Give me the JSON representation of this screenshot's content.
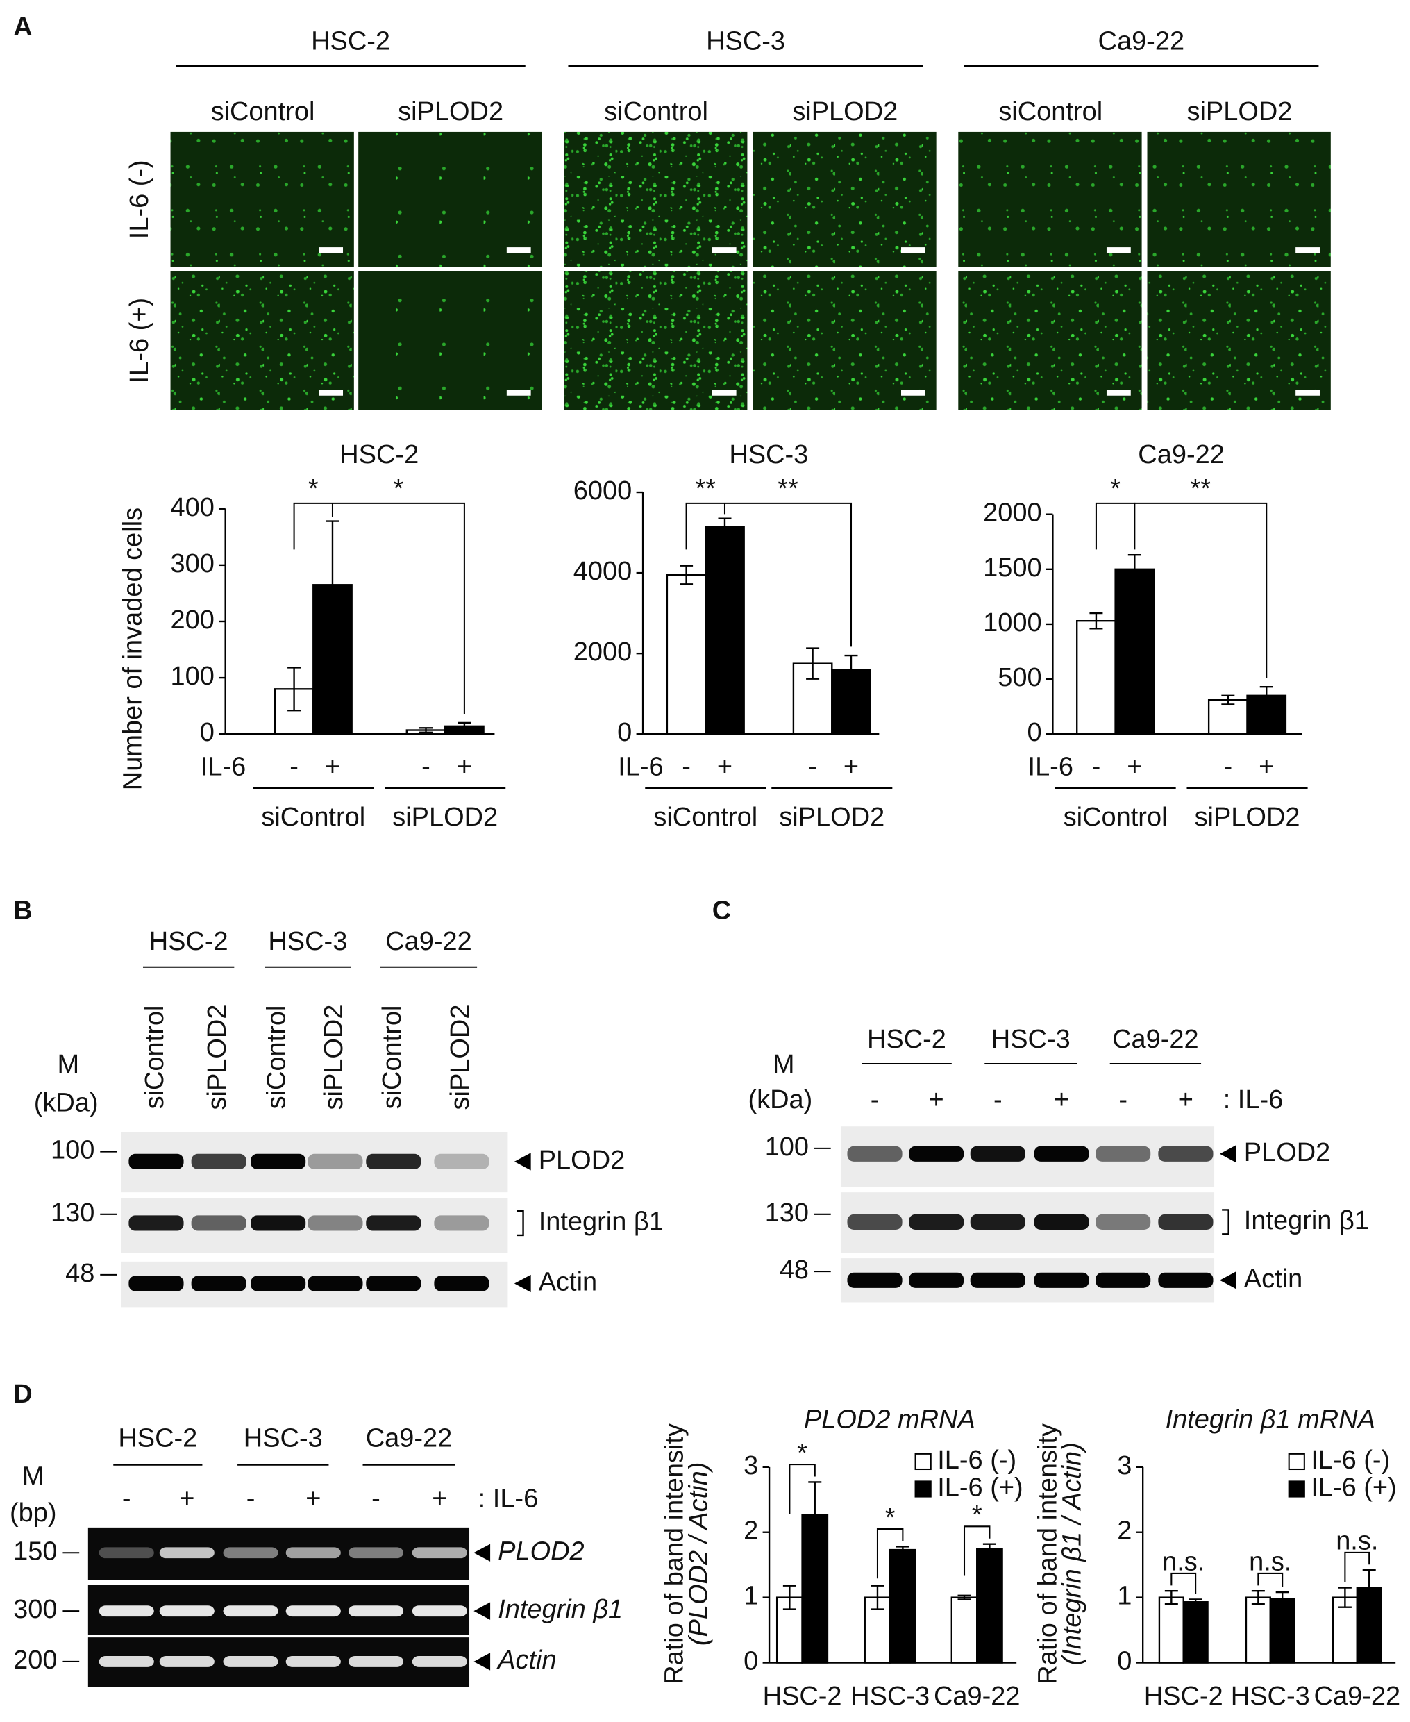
{
  "panel_a": {
    "label": "A",
    "cell_lines": [
      "HSC-2",
      "HSC-3",
      "Ca9-22"
    ],
    "conditions": [
      "siControl",
      "siPLOD2"
    ],
    "rows": [
      "IL-6 (-)",
      "IL-6 (+)"
    ]
  },
  "chart_data": [
    {
      "type": "bar",
      "title": "HSC-2",
      "y_label": "Number of invaded cells",
      "x_label": "IL-6",
      "categories": [
        "siControl",
        "siPLOD2"
      ],
      "series": [
        {
          "name": "-",
          "color": "#ffffff",
          "values": [
            80,
            7
          ],
          "errors": [
            38,
            4
          ]
        },
        {
          "name": "+",
          "color": "#000000",
          "values": [
            265,
            14
          ],
          "errors": [
            113,
            6
          ]
        }
      ],
      "ylim": [
        0,
        400
      ],
      "yticks": [
        0,
        100,
        200,
        300,
        400
      ],
      "annotations": [
        "*",
        "*"
      ]
    },
    {
      "type": "bar",
      "title": "HSC-3",
      "x_label": "IL-6",
      "categories": [
        "siControl",
        "siPLOD2"
      ],
      "series": [
        {
          "name": "-",
          "color": "#ffffff",
          "values": [
            3950,
            1750
          ],
          "errors": [
            230,
            380
          ]
        },
        {
          "name": "+",
          "color": "#000000",
          "values": [
            5150,
            1600
          ],
          "errors": [
            200,
            350
          ]
        }
      ],
      "ylim": [
        0,
        6000
      ],
      "yticks": [
        0,
        2000,
        4000,
        6000
      ],
      "annotations": [
        "**",
        "**"
      ]
    },
    {
      "type": "bar",
      "title": "Ca9-22",
      "x_label": "IL-6",
      "categories": [
        "siControl",
        "siPLOD2"
      ],
      "series": [
        {
          "name": "-",
          "color": "#ffffff",
          "values": [
            1030,
            310
          ],
          "errors": [
            70,
            40
          ]
        },
        {
          "name": "+",
          "color": "#000000",
          "values": [
            1500,
            350
          ],
          "errors": [
            130,
            80
          ]
        }
      ],
      "ylim": [
        0,
        2000
      ],
      "yticks": [
        0,
        500,
        1000,
        1500,
        2000
      ],
      "annotations": [
        "*",
        "**"
      ]
    },
    {
      "type": "bar",
      "title": "PLOD2 mRNA",
      "y_label": "Ratio of band intensity",
      "y_label_sub": "(PLOD2 / Actin)",
      "categories": [
        "HSC-2",
        "HSC-3",
        "Ca9-22"
      ],
      "series": [
        {
          "name": "IL-6 (-)",
          "color": "#ffffff",
          "values": [
            1,
            1,
            1
          ],
          "errors": [
            0.18,
            0.18,
            0.03
          ]
        },
        {
          "name": "IL-6 (+)",
          "color": "#000000",
          "values": [
            2.27,
            1.73,
            1.75
          ],
          "errors": [
            0.5,
            0.05,
            0.07
          ]
        }
      ],
      "ylim": [
        0,
        3
      ],
      "yticks": [
        0,
        1,
        2,
        3
      ],
      "legend": "upper right",
      "annotations": [
        "*",
        "*",
        "*"
      ]
    },
    {
      "type": "bar",
      "title": "Integrin β1 mRNA",
      "y_label": "Ratio of band intensity",
      "y_label_sub": "(Integrin β1 / Actin)",
      "categories": [
        "HSC-2",
        "HSC-3",
        "Ca9-22"
      ],
      "series": [
        {
          "name": "IL-6 (-)",
          "color": "#ffffff",
          "values": [
            1,
            1,
            1
          ],
          "errors": [
            0.1,
            0.1,
            0.15
          ]
        },
        {
          "name": "IL-6 (+)",
          "color": "#000000",
          "values": [
            0.93,
            0.98,
            1.15
          ],
          "errors": [
            0.04,
            0.1,
            0.27
          ]
        }
      ],
      "ylim": [
        0,
        3
      ],
      "yticks": [
        0,
        1,
        2,
        3
      ],
      "legend": "upper right",
      "annotations": [
        "n.s.",
        "n.s.",
        "n.s."
      ]
    }
  ],
  "panel_b": {
    "label": "B",
    "cell_lines": [
      "HSC-2",
      "HSC-3",
      "Ca9-22"
    ],
    "lanes": [
      "siControl",
      "siPLOD2",
      "siControl",
      "siPLOD2",
      "siControl",
      "siPLOD2"
    ],
    "marker": "M",
    "unit": "(kDa)",
    "sizes": [
      100,
      130,
      48
    ],
    "bands": [
      "PLOD2",
      "Integrin β1",
      "Actin"
    ]
  },
  "panel_c": {
    "label": "C",
    "cell_lines": [
      "HSC-2",
      "HSC-3",
      "Ca9-22"
    ],
    "lanes": [
      "-",
      "+",
      "-",
      "+",
      "-",
      "+"
    ],
    "treatment": ": IL-6",
    "marker": "M",
    "unit": "(kDa)",
    "sizes": [
      100,
      130,
      48
    ],
    "bands": [
      "PLOD2",
      "Integrin β1",
      "Actin"
    ]
  },
  "panel_d": {
    "label": "D",
    "cell_lines": [
      "HSC-2",
      "HSC-3",
      "Ca9-22"
    ],
    "lanes": [
      "-",
      "+",
      "-",
      "+",
      "-",
      "+"
    ],
    "treatment": ": IL-6",
    "marker": "M",
    "unit": "(bp)",
    "sizes": [
      150,
      300,
      200
    ],
    "bands": [
      "PLOD2",
      "Integrin β1",
      "Actin"
    ]
  }
}
